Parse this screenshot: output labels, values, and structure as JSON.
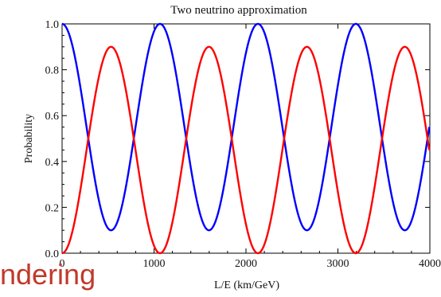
{
  "chart_data": {
    "type": "line",
    "title": "Two neutrino approximation",
    "xlabel": "L/E (km/GeV)",
    "ylabel": "Probability",
    "xlim": [
      0,
      4000
    ],
    "ylim": [
      0,
      1.0
    ],
    "x_ticks": [
      "0",
      "1000",
      "2000",
      "3000",
      "4000"
    ],
    "y_ticks": [
      "0.0",
      "0.2",
      "0.4",
      "0.6",
      "0.8",
      "1.0"
    ],
    "grid": false,
    "legend": "none",
    "series": [
      {
        "color": "#0000ff",
        "formula": "1 - 0.9*sin^2(pi*x/1065)",
        "x": [
          0,
          266,
          532,
          799,
          1065,
          1331,
          1597,
          1864,
          2130,
          2396,
          2662,
          2929,
          3195,
          3461,
          3727,
          3994
        ],
        "values": [
          1.0,
          0.55,
          0.1,
          0.55,
          1.0,
          0.55,
          0.1,
          0.55,
          1.0,
          0.55,
          0.1,
          0.55,
          1.0,
          0.55,
          0.1,
          0.55
        ]
      },
      {
        "color": "#ff0000",
        "formula": "0.9*sin^2(pi*x/1065)",
        "x": [
          0,
          266,
          532,
          799,
          1065,
          1331,
          1597,
          1864,
          2130,
          2396,
          2662,
          2929,
          3195,
          3461,
          3727,
          3994
        ],
        "values": [
          0.0,
          0.45,
          0.9,
          0.45,
          0.0,
          0.45,
          0.9,
          0.45,
          0.0,
          0.45,
          0.9,
          0.45,
          0.0,
          0.45,
          0.9,
          0.45
        ]
      }
    ]
  },
  "overlay": {
    "partial_text": "ndering",
    "color": "#c0392b"
  }
}
